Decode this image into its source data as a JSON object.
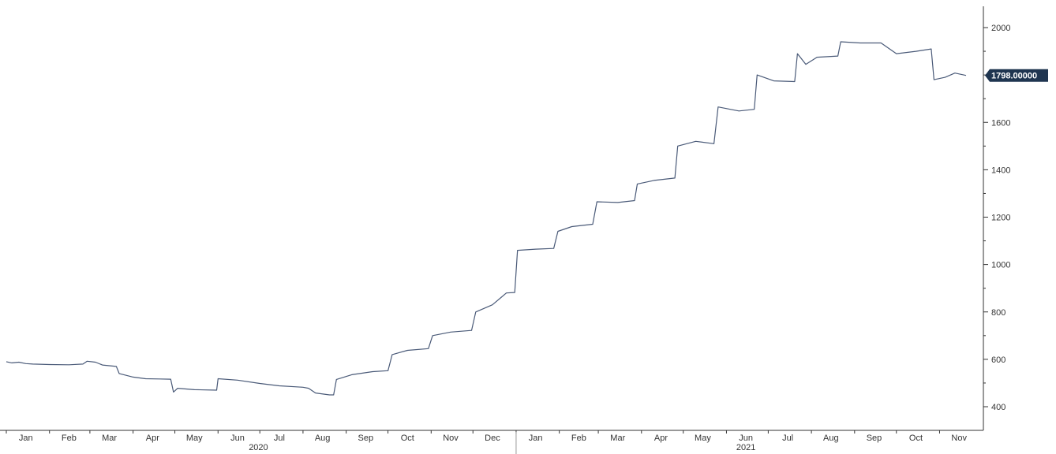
{
  "chart_data": {
    "type": "line",
    "title": "",
    "xlabel": "",
    "ylabel": "",
    "x_range": [
      "2020-01-01",
      "2021-11-20"
    ],
    "ylim": [
      300,
      2100
    ],
    "y_ticks": [
      400,
      600,
      800,
      1000,
      1200,
      1400,
      1600,
      1800,
      2000
    ],
    "y_axis_side": "right",
    "grid": false,
    "legend": "none",
    "colors": {
      "line": "#4a5a78",
      "axis": "#333333",
      "last_value_bg": "#1f3550"
    },
    "last_value_label": "1798.00000",
    "years": [
      {
        "label": "2020",
        "center": "2020-06-30"
      },
      {
        "label": "2021",
        "center": "2021-06-15"
      }
    ],
    "x_ticks": [
      {
        "label": "Jan",
        "date": "2020-01-15"
      },
      {
        "label": "Feb",
        "date": "2020-02-15"
      },
      {
        "label": "Mar",
        "date": "2020-03-15"
      },
      {
        "label": "Apr",
        "date": "2020-04-15"
      },
      {
        "label": "May",
        "date": "2020-05-15"
      },
      {
        "label": "Jun",
        "date": "2020-06-15"
      },
      {
        "label": "Jul",
        "date": "2020-07-15"
      },
      {
        "label": "Aug",
        "date": "2020-08-15"
      },
      {
        "label": "Sep",
        "date": "2020-09-15"
      },
      {
        "label": "Oct",
        "date": "2020-10-15"
      },
      {
        "label": "Nov",
        "date": "2020-11-15"
      },
      {
        "label": "Dec",
        "date": "2020-12-15"
      },
      {
        "label": "Jan",
        "date": "2021-01-15"
      },
      {
        "label": "Feb",
        "date": "2021-02-15"
      },
      {
        "label": "Mar",
        "date": "2021-03-15"
      },
      {
        "label": "Apr",
        "date": "2021-04-15"
      },
      {
        "label": "May",
        "date": "2021-05-15"
      },
      {
        "label": "Jun",
        "date": "2021-06-15"
      },
      {
        "label": "Jul",
        "date": "2021-07-15"
      },
      {
        "label": "Aug",
        "date": "2021-08-15"
      },
      {
        "label": "Sep",
        "date": "2021-09-15"
      },
      {
        "label": "Oct",
        "date": "2021-10-15"
      },
      {
        "label": "Nov",
        "date": "2021-11-15"
      }
    ],
    "series": [
      {
        "points": [
          [
            "2020-01-01",
            590
          ],
          [
            "2020-01-05",
            585
          ],
          [
            "2020-01-10",
            588
          ],
          [
            "2020-01-15",
            582
          ],
          [
            "2020-01-20",
            580
          ],
          [
            "2020-02-01",
            578
          ],
          [
            "2020-02-15",
            577
          ],
          [
            "2020-02-25",
            580
          ],
          [
            "2020-02-28",
            592
          ],
          [
            "2020-03-05",
            588
          ],
          [
            "2020-03-10",
            576
          ],
          [
            "2020-03-20",
            570
          ],
          [
            "2020-03-22",
            540
          ],
          [
            "2020-04-01",
            525
          ],
          [
            "2020-04-10",
            518
          ],
          [
            "2020-04-20",
            517
          ],
          [
            "2020-04-28",
            516
          ],
          [
            "2020-04-30",
            462
          ],
          [
            "2020-05-03",
            478
          ],
          [
            "2020-05-15",
            472
          ],
          [
            "2020-05-31",
            470
          ],
          [
            "2020-06-01",
            518
          ],
          [
            "2020-06-15",
            512
          ],
          [
            "2020-07-01",
            498
          ],
          [
            "2020-07-15",
            488
          ],
          [
            "2020-08-01",
            482
          ],
          [
            "2020-08-05",
            478
          ],
          [
            "2020-08-10",
            458
          ],
          [
            "2020-08-20",
            450
          ],
          [
            "2020-08-23",
            450
          ],
          [
            "2020-08-25",
            515
          ],
          [
            "2020-09-05",
            535
          ],
          [
            "2020-09-20",
            548
          ],
          [
            "2020-10-01",
            552
          ],
          [
            "2020-10-04",
            620
          ],
          [
            "2020-10-15",
            638
          ],
          [
            "2020-10-30",
            645
          ],
          [
            "2020-11-02",
            700
          ],
          [
            "2020-11-15",
            715
          ],
          [
            "2020-11-30",
            722
          ],
          [
            "2020-12-03",
            800
          ],
          [
            "2020-12-15",
            830
          ],
          [
            "2020-12-25",
            880
          ],
          [
            "2020-12-31",
            882
          ],
          [
            "2021-01-02",
            1060
          ],
          [
            "2021-01-15",
            1065
          ],
          [
            "2021-01-28",
            1068
          ],
          [
            "2021-01-31",
            1140
          ],
          [
            "2021-02-10",
            1160
          ],
          [
            "2021-02-25",
            1170
          ],
          [
            "2021-02-28",
            1265
          ],
          [
            "2021-03-15",
            1262
          ],
          [
            "2021-03-27",
            1270
          ],
          [
            "2021-03-29",
            1340
          ],
          [
            "2021-04-10",
            1355
          ],
          [
            "2021-04-25",
            1365
          ],
          [
            "2021-04-27",
            1500
          ],
          [
            "2021-05-10",
            1520
          ],
          [
            "2021-05-23",
            1510
          ],
          [
            "2021-05-26",
            1665
          ],
          [
            "2021-06-10",
            1648
          ],
          [
            "2021-06-21",
            1655
          ],
          [
            "2021-06-23",
            1800
          ],
          [
            "2021-07-05",
            1775
          ],
          [
            "2021-07-20",
            1772
          ],
          [
            "2021-07-22",
            1890
          ],
          [
            "2021-07-28",
            1845
          ],
          [
            "2021-08-05",
            1875
          ],
          [
            "2021-08-20",
            1880
          ],
          [
            "2021-08-22",
            1940
          ],
          [
            "2021-09-05",
            1935
          ],
          [
            "2021-09-20",
            1935
          ],
          [
            "2021-10-01",
            1890
          ],
          [
            "2021-10-15",
            1900
          ],
          [
            "2021-10-26",
            1910
          ],
          [
            "2021-10-28",
            1780
          ],
          [
            "2021-11-05",
            1790
          ],
          [
            "2021-11-12",
            1808
          ],
          [
            "2021-11-20",
            1798
          ]
        ]
      }
    ]
  }
}
